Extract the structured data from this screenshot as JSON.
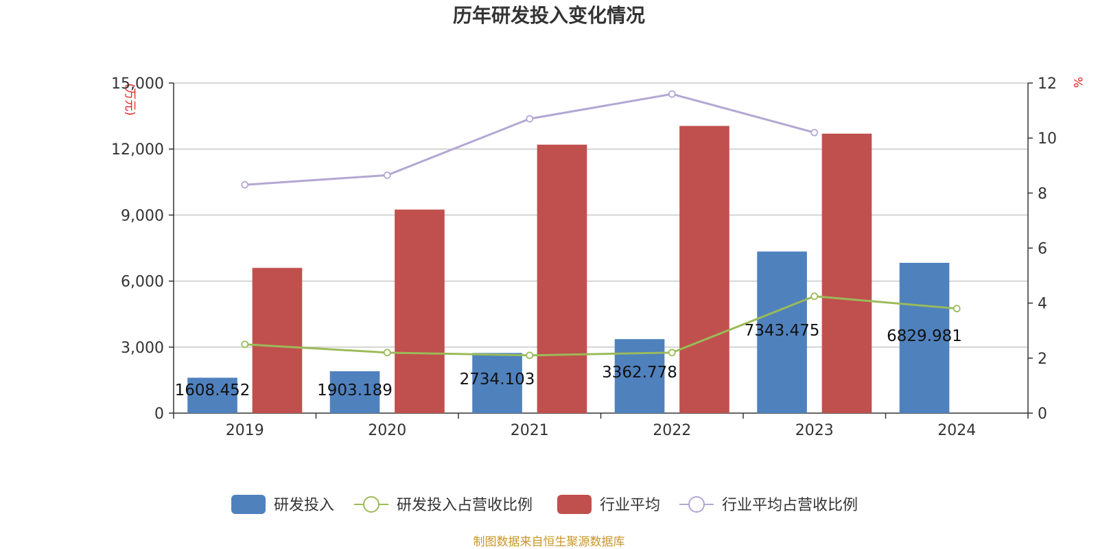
{
  "chart_data": {
    "type": "bar",
    "title": "历年研发投入变化情况",
    "categories": [
      "2019",
      "2020",
      "2021",
      "2022",
      "2023",
      "2024"
    ],
    "y_left": {
      "unit_label": "(万元)",
      "ylim": [
        0,
        15000
      ],
      "ticks": [
        "0",
        "3,000",
        "6,000",
        "9,000",
        "12,000",
        "15,000"
      ],
      "tick_values": [
        0,
        3000,
        6000,
        9000,
        12000,
        15000
      ]
    },
    "y_right": {
      "unit_label": "%",
      "ylim": [
        0,
        12
      ],
      "ticks": [
        "0",
        "2",
        "4",
        "6",
        "8",
        "10",
        "12"
      ],
      "tick_values": [
        0,
        2,
        4,
        6,
        8,
        10,
        12
      ]
    },
    "grid": true,
    "legend_position": "bottom",
    "series": [
      {
        "name": "研发投入",
        "type": "bar",
        "axis": "left",
        "color": "#4f81bd",
        "values": [
          1608.452,
          1903.189,
          2734.103,
          3362.778,
          7343.475,
          6829.981
        ],
        "labels": [
          "1608.452",
          "1903.189",
          "2734.103",
          "3362.778",
          "7343.475",
          "6829.981"
        ]
      },
      {
        "name": "研发投入占营收比例",
        "type": "line",
        "axis": "right",
        "color": "#9bbb59",
        "values": [
          2.5,
          2.2,
          2.1,
          2.2,
          4.25,
          3.8
        ]
      },
      {
        "name": "行业平均",
        "type": "bar",
        "axis": "left",
        "color": "#c0504d",
        "values": [
          6600,
          9250,
          12200,
          13050,
          12700,
          null
        ]
      },
      {
        "name": "行业平均占营收比例",
        "type": "line",
        "axis": "right",
        "color": "#b3a6d3",
        "values": [
          8.3,
          8.65,
          10.7,
          11.6,
          10.2,
          null
        ]
      }
    ]
  },
  "source": "制图数据来自恒生聚源数据库"
}
